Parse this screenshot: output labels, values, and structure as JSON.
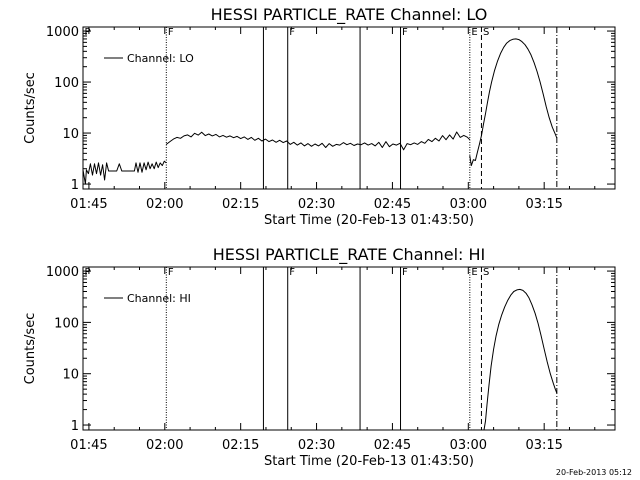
{
  "chart_data": [
    {
      "type": "line",
      "title": "HESSI PARTICLE_RATE Channel: LO",
      "xlabel": "Start Time (20-Feb-13 01:43:50)",
      "ylabel": "Counts/sec",
      "x_ticks": [
        "01:45",
        "02:00",
        "02:15",
        "02:30",
        "02:45",
        "03:00",
        "03:15"
      ],
      "x_tick_minutes": [
        105,
        120,
        135,
        150,
        165,
        180,
        195
      ],
      "xlim_minutes": [
        103.83,
        209
      ],
      "y_scale": "log",
      "y_ticks": [
        "1",
        "10",
        "100",
        "1000"
      ],
      "y_tick_values": [
        1,
        10,
        100,
        1000
      ],
      "ylim": [
        0.8,
        1200
      ],
      "legend": {
        "label": "Channel: LO",
        "placement": "top-left"
      },
      "markers": [
        {
          "label": "P",
          "time_minutes": 103.83,
          "style": "dotted"
        },
        {
          "label": "F",
          "time_minutes": 120.3,
          "style": "dotted"
        },
        {
          "label": "",
          "time_minutes": 139.5,
          "style": "solid"
        },
        {
          "label": "F",
          "time_minutes": 144.3,
          "style": "solid"
        },
        {
          "label": "",
          "time_minutes": 158.6,
          "style": "solid"
        },
        {
          "label": "F",
          "time_minutes": 166.6,
          "style": "solid"
        },
        {
          "label": "E",
          "time_minutes": 180.3,
          "style": "dotted"
        },
        {
          "label": "S",
          "time_minutes": 182.6,
          "style": "dashed"
        },
        {
          "label": "",
          "time_minutes": 197.5,
          "style": "dashdot"
        }
      ],
      "series": [
        {
          "name": "Channel: LO",
          "segments": [
            {
              "x": [
                103.83,
                104.3,
                104.5,
                104.9,
                105.3,
                105.7,
                106.1,
                106.5,
                106.9,
                107.3,
                107.7,
                108.1,
                108.5,
                108.9,
                109.3,
                109.7,
                110.1,
                110.5,
                111,
                111.5,
                112,
                112.5,
                113,
                113.5,
                114,
                114.3,
                114.7,
                115.1,
                115.5,
                115.9,
                116.3,
                116.7,
                117.1,
                117.5,
                117.9,
                118.3,
                118.7,
                119.1,
                119.5,
                119.9,
                120.3
              ],
              "y": [
                1.9,
                1.0,
                1.9,
                1.6,
                2.5,
                1.5,
                2.5,
                1.6,
                2.6,
                1.5,
                2.4,
                1.2,
                2.6,
                1.8,
                1.8,
                1.8,
                1.8,
                1.8,
                2.5,
                1.8,
                1.8,
                1.8,
                1.8,
                1.8,
                1.8,
                2.6,
                1.7,
                2.6,
                1.7,
                2.6,
                1.9,
                2.7,
                2.0,
                2.5,
                2.0,
                2.7,
                2.1,
                2.6,
                2.3,
                2.8,
                2.6
              ]
            },
            {
              "x": [
                120.3,
                121,
                121.7,
                122.4,
                123.1,
                123.8,
                124.5,
                125.2,
                125.9,
                126.6,
                127.3,
                128,
                128.7,
                129.4,
                130.1,
                130.8,
                131.5,
                132.2,
                132.9,
                133.6,
                134.3,
                135,
                135.7,
                136.4,
                137.1,
                137.8,
                138.5,
                139.2,
                139.9,
                140.6,
                141.3,
                142,
                142.7,
                143.4,
                144.1,
                144.8,
                145.5,
                146.2,
                146.9,
                147.6,
                148.3,
                149,
                149.7,
                150.4,
                151.1,
                151.8,
                152.5,
                153.2,
                153.9,
                154.6,
                155.3,
                156,
                156.7,
                157.4,
                158.1,
                158.8,
                159.5,
                160.2,
                160.9,
                161.6,
                162.3,
                163,
                163.7,
                164.4,
                165.1,
                165.8,
                166.5,
                167.2,
                167.9,
                168.6,
                169.3,
                170,
                170.7,
                171.4,
                172.1,
                172.8,
                173.5,
                174.2,
                174.9,
                175.6,
                176.3,
                177,
                177.7,
                178.4,
                179.1,
                179.8,
                180.3
              ],
              "y": [
                6.0,
                6.8,
                7.6,
                8.2,
                7.9,
                8.8,
                9.2,
                8.4,
                9.9,
                9.1,
                10.4,
                8.9,
                9.6,
                8.8,
                9.4,
                8.4,
                9.0,
                8.3,
                8.8,
                8.1,
                8.6,
                7.8,
                8.4,
                7.5,
                8.2,
                7.2,
                7.9,
                7.0,
                7.6,
                6.8,
                7.3,
                6.6,
                7.2,
                6.5,
                7.0,
                6.0,
                6.6,
                5.8,
                6.4,
                5.6,
                6.2,
                5.5,
                6.1,
                5.6,
                6.3,
                5.2,
                6.2,
                5.5,
                6.0,
                5.8,
                6.5,
                5.9,
                6.3,
                5.7,
                6.1,
                5.9,
                6.4,
                5.8,
                6.2,
                5.6,
                6.6,
                5.2,
                6.8,
                5.4,
                6.1,
                5.8,
                6.3,
                4.7,
                6.2,
                5.9,
                6.4,
                6.0,
                6.8,
                6.3,
                7.5,
                6.8,
                7.9,
                7.0,
                8.9,
                7.4,
                9.2,
                7.6,
                10.5,
                8.2,
                9.0,
                8.3,
                7.4
              ]
            },
            {
              "x": [
                180.3,
                180.6,
                181,
                181.4,
                181.8,
                182.2,
                182.6,
                183,
                183.4,
                183.8,
                184.2,
                184.6,
                185.2,
                185.8,
                186.4,
                187,
                187.6,
                188.2,
                188.8,
                189.4,
                190,
                190.6,
                191.2,
                191.8,
                192.4,
                193,
                193.6,
                194.2,
                194.8,
                195.4,
                196,
                196.6,
                197.2,
                197.5
              ],
              "y": [
                3.6,
                2.3,
                3.0,
                2.9,
                4.2,
                6.0,
                9.0,
                15,
                24,
                40,
                65,
                100,
                170,
                260,
                370,
                480,
                580,
                650,
                690,
                700,
                680,
                620,
                540,
                440,
                340,
                240,
                160,
                100,
                58,
                33,
                20,
                13,
                9.5,
                8.0
              ]
            }
          ]
        }
      ]
    },
    {
      "type": "line",
      "title": "HESSI PARTICLE_RATE Channel: HI",
      "xlabel": "Start Time (20-Feb-13 01:43:50)",
      "ylabel": "Counts/sec",
      "x_ticks": [
        "01:45",
        "02:00",
        "02:15",
        "02:30",
        "02:45",
        "03:00",
        "03:15"
      ],
      "x_tick_minutes": [
        105,
        120,
        135,
        150,
        165,
        180,
        195
      ],
      "xlim_minutes": [
        103.83,
        209
      ],
      "y_scale": "log",
      "y_ticks": [
        "1",
        "10",
        "100",
        "1000"
      ],
      "y_tick_values": [
        1,
        10,
        100,
        1000
      ],
      "ylim": [
        0.8,
        1200
      ],
      "legend": {
        "label": "Channel: HI",
        "placement": "top-left"
      },
      "markers": [
        {
          "label": "P",
          "time_minutes": 103.83,
          "style": "dotted"
        },
        {
          "label": "F",
          "time_minutes": 120.3,
          "style": "dotted"
        },
        {
          "label": "",
          "time_minutes": 139.5,
          "style": "solid"
        },
        {
          "label": "F",
          "time_minutes": 144.3,
          "style": "solid"
        },
        {
          "label": "",
          "time_minutes": 158.6,
          "style": "solid"
        },
        {
          "label": "F",
          "time_minutes": 166.6,
          "style": "solid"
        },
        {
          "label": "E",
          "time_minutes": 180.3,
          "style": "dotted"
        },
        {
          "label": "S",
          "time_minutes": 182.6,
          "style": "dashed"
        },
        {
          "label": "",
          "time_minutes": 197.5,
          "style": "dashdot"
        }
      ],
      "series": [
        {
          "name": "Channel: HI",
          "segments": [
            {
              "x": [
                183.1,
                183.4,
                183.7,
                184.1,
                184.5,
                185,
                185.5,
                186,
                186.6,
                187.2,
                187.8,
                188.4,
                189,
                189.6,
                190.2,
                190.8,
                191.4,
                192,
                192.6,
                193.2,
                193.8,
                194.4,
                195,
                195.6,
                196.2,
                196.8,
                197.2,
                197.5
              ],
              "y": [
                0.8,
                1.2,
                2.5,
                6,
                14,
                30,
                55,
                90,
                140,
                200,
                270,
                340,
                400,
                430,
                440,
                420,
                370,
                300,
                220,
                150,
                95,
                55,
                30,
                17,
                10,
                6.5,
                5.0,
                4.2
              ]
            }
          ]
        }
      ]
    }
  ],
  "footer": {
    "timestamp": "20-Feb-2013 05:12"
  }
}
